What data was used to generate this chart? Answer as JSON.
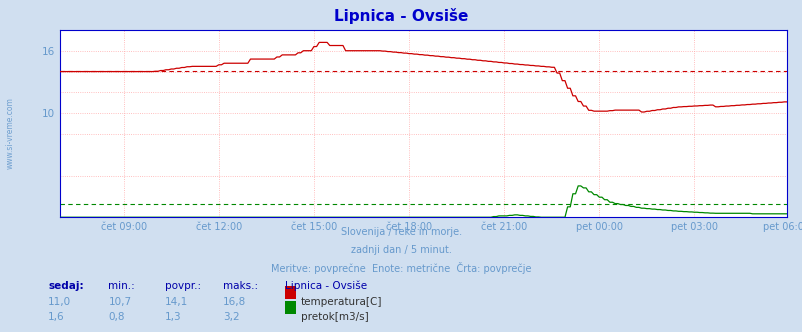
{
  "title": "Lipnica - Ovsiše",
  "bg_color": "#d0dff0",
  "plot_bg_color": "#ffffff",
  "title_color": "#0000cc",
  "temp_color": "#cc0000",
  "flow_color": "#008800",
  "avg_temp": 14.1,
  "avg_flow": 1.3,
  "ylim": [
    0,
    18
  ],
  "xlabel_ticks": [
    "čet 09:00",
    "čet 12:00",
    "čet 15:00",
    "čet 18:00",
    "čet 21:00",
    "pet 00:00",
    "pet 03:00",
    "pet 06:00"
  ],
  "footer_line1": "Slovenija / reke in morje.",
  "footer_line2": "zadnji dan / 5 minut.",
  "footer_line3": "Meritve: povprečne  Enote: metrične  Črta: povprečje",
  "stats_header": [
    "sedaj:",
    "min.:",
    "povpr.:",
    "maks.:",
    "Lipnica - Ovsiše"
  ],
  "stats_temp": [
    "11,0",
    "10,7",
    "14,1",
    "16,8",
    "temperatura[C]"
  ],
  "stats_flow": [
    "1,6",
    "0,8",
    "1,3",
    "3,2",
    "pretok[m3/s]"
  ],
  "watermark": "www.si-vreme.com",
  "text_color": "#6699cc",
  "label_bold_color": "#0000aa"
}
